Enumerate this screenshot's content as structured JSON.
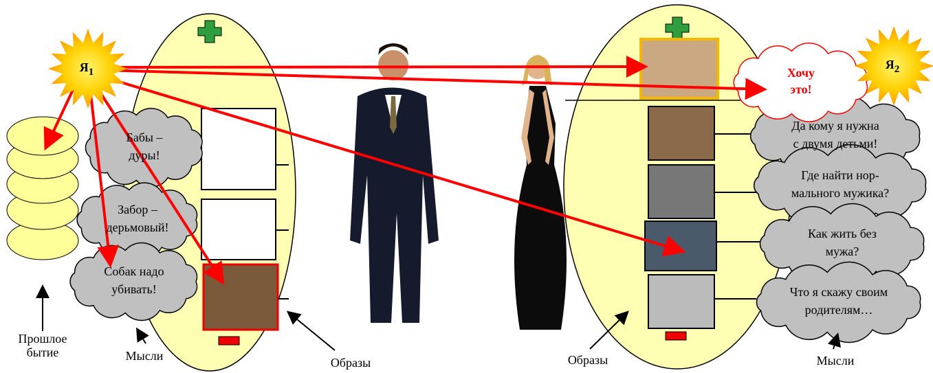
{
  "suns": [
    {
      "label": "Я",
      "index": "1"
    },
    {
      "label": "Я",
      "index": "2"
    }
  ],
  "desire": {
    "lines": [
      "Хочу",
      "это!"
    ]
  },
  "left_thoughts": [
    {
      "lines": [
        "Бабы –",
        "дуры!"
      ]
    },
    {
      "lines": [
        "Забор –",
        "дерьмовый!"
      ]
    },
    {
      "lines": [
        "Собак надо",
        "убивать!"
      ]
    }
  ],
  "right_thoughts": [
    {
      "lines": [
        "Да кому я нужна",
        "с двумя детьми!"
      ]
    },
    {
      "lines": [
        "Где найти нор-",
        "мального мужика?"
      ]
    },
    {
      "lines": [
        "Как жить без",
        "мужа?"
      ]
    },
    {
      "lines": [
        "Что я скажу своим",
        "родителям…"
      ]
    }
  ],
  "labels": {
    "past": [
      "Прошлое",
      "бытие"
    ],
    "left_thoughts": "Мысли",
    "left_images": "Образы",
    "right_images": "Образы",
    "right_thoughts": "Мысли"
  }
}
